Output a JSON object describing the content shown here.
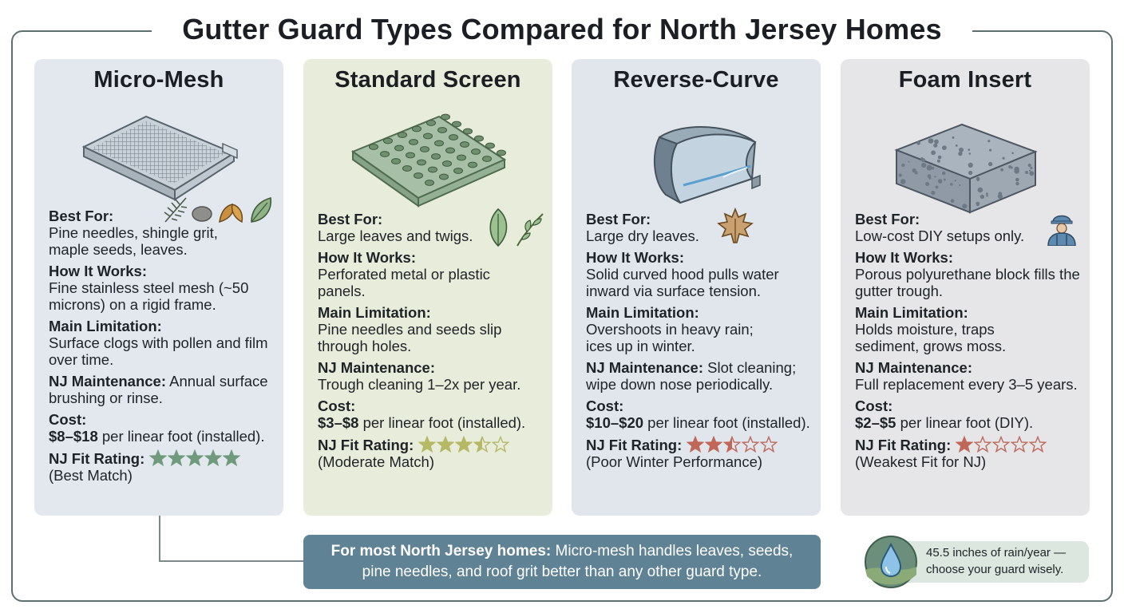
{
  "title": "Gutter Guard Types Compared for North Jersey Homes",
  "cards": [
    {
      "name": "Micro-Mesh",
      "best_for_label": "Best For:",
      "best_for": "Pine needles, shingle grit, maple seeds, leaves.",
      "how_label": "How It Works:",
      "how": "Fine stainless steel mesh (~50 microns) on a rigid frame.",
      "limit_label": "Main Limitation:",
      "limit": "Surface clogs with pollen and film over time.",
      "maint_label": "NJ Maintenance:",
      "maint": "Annual surface brushing or rinse.",
      "cost_label": "Cost:",
      "cost_value": "$8–$18",
      "cost_rest": "per linear foot (installed).",
      "rating_label": "NJ Fit Rating:",
      "rating": 5,
      "rating_note": "(Best Match)",
      "bg": "#e3e8ee",
      "star_color": "#6f9a7c"
    },
    {
      "name": "Standard Screen",
      "best_for_label": "Best For:",
      "best_for": "Large leaves and twigs.",
      "how_label": "How It Works:",
      "how": "Perforated metal or plastic panels.",
      "limit_label": "Main Limitation:",
      "limit": "Pine needles and seeds slip through holes.",
      "maint_label": "NJ Maintenance:",
      "maint": "Trough cleaning 1–2x per year.",
      "cost_label": "Cost:",
      "cost_value": "$3–$8",
      "cost_rest": "per linear foot (installed).",
      "rating_label": "NJ Fit Rating:",
      "rating": 3.5,
      "rating_note": "(Moderate Match)",
      "bg": "#e8ecda",
      "star_color": "#b5b864"
    },
    {
      "name": "Reverse-Curve",
      "best_for_label": "Best For:",
      "best_for": "Large dry leaves.",
      "how_label": "How It Works:",
      "how": "Solid curved hood pulls water inward via surface tension.",
      "limit_label": "Main Limitation:",
      "limit": "Overshoots in heavy rain; ices up in winter.",
      "maint_label": "NJ Maintenance:",
      "maint": "Slot cleaning; wipe down nose periodically.",
      "cost_label": "Cost:",
      "cost_value": "$10–$20",
      "cost_rest": "per linear foot (installed).",
      "rating_label": "NJ Fit Rating:",
      "rating": 2.5,
      "rating_note": "(Poor Winter Performance)",
      "bg": "#e0e6ec",
      "star_color": "#c0675a"
    },
    {
      "name": "Foam Insert",
      "best_for_label": "Best For:",
      "best_for": "Low-cost DIY setups only.",
      "how_label": "How It Works:",
      "how": "Porous polyurethane block fills the gutter trough.",
      "limit_label": "Main Limitation:",
      "limit": "Holds moisture, traps sediment, grows moss.",
      "maint_label": "NJ Maintenance:",
      "maint": "Full replacement every 3–5 years.",
      "cost_label": "Cost:",
      "cost_value": "$2–$5",
      "cost_rest": "per linear foot (DIY).",
      "rating_label": "NJ Fit Rating:",
      "rating": 1,
      "rating_note": "(Weakest Fit for NJ)",
      "bg": "#e6e6e8",
      "star_color": "#c0675a"
    }
  ],
  "callout": {
    "lead": "For most North Jersey homes:",
    "line1_rest": "Micro-mesh handles leaves, seeds,",
    "line2": "pine needles, and roof grit better than any other guard type."
  },
  "rain_note": {
    "line1": "45.5 inches of rain/year —",
    "line2": "choose your guard wisely."
  }
}
